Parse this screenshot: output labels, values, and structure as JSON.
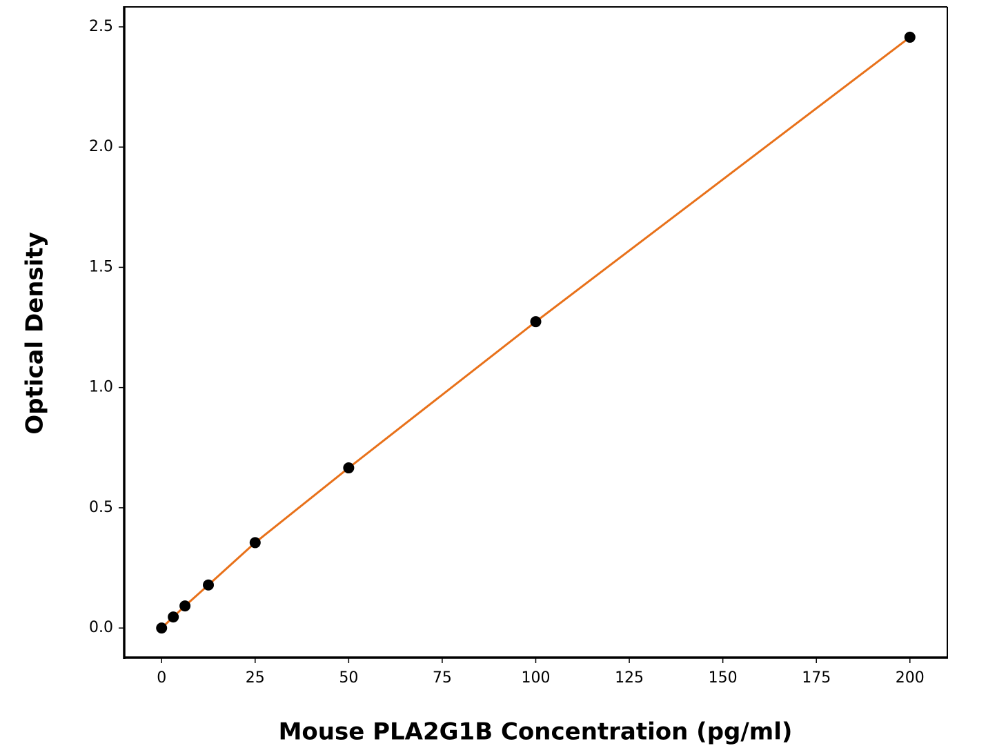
{
  "chart_data": {
    "type": "scatter",
    "x_label": "Mouse PLA2G1B Concentration (pg/ml)",
    "y_label": "Optical Density",
    "x": [
      0,
      3.125,
      6.25,
      12.5,
      25,
      50,
      100,
      200
    ],
    "series": [
      {
        "color": "#000000",
        "line_color": "#e8711a",
        "values": [
          0,
          0.046,
          0.092,
          0.179,
          0.355,
          0.666,
          1.274,
          2.457
        ]
      }
    ],
    "xlim": [
      -10,
      210
    ],
    "ylim": [
      -0.123,
      2.583
    ],
    "xticks": [
      0,
      25,
      50,
      75,
      100,
      125,
      150,
      175,
      200
    ],
    "yticks": [
      {
        "value": 0,
        "label": "0.0"
      },
      0.5,
      {
        "value": 1,
        "label": "1.0"
      },
      1.5,
      {
        "value": 2,
        "label": "2.0"
      },
      2.5
    ],
    "grid": false
  }
}
